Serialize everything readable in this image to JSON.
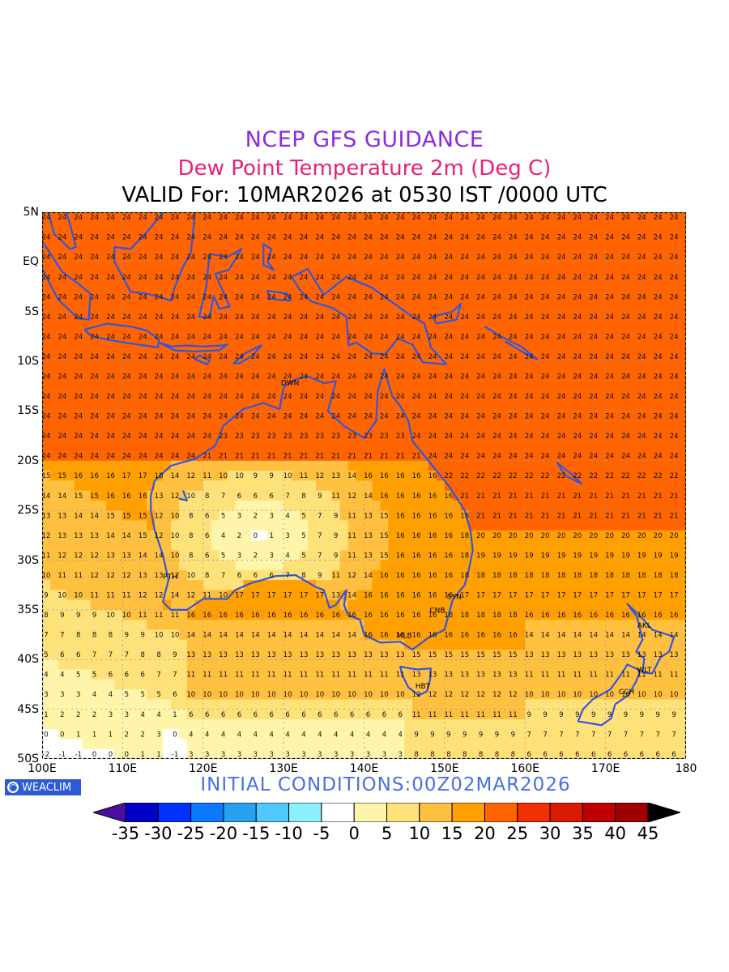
{
  "header": {
    "line1": "NCEP GFS GUIDANCE",
    "line2": "Dew Point Temperature 2m (Deg C)",
    "line3": "VALID For: 10MAR2026 at 0530 IST /0000 UTC",
    "line1_color": "#8a2be2",
    "line2_color": "#e8207a"
  },
  "map": {
    "lat_labels": [
      "5N",
      "EQ",
      "5S",
      "10S",
      "15S",
      "20S",
      "25S",
      "30S",
      "35S",
      "40S",
      "45S",
      "50S"
    ],
    "lon_labels": [
      "100E",
      "110E",
      "120E",
      "130E",
      "140E",
      "150E",
      "160E",
      "170E",
      "180"
    ],
    "coastline_color": "#3355dd",
    "city_labels": [
      {
        "name": "DWN",
        "lon": 130.8,
        "lat": -12.4
      },
      {
        "name": "PTH",
        "lon": 115.9,
        "lat": -31.9
      },
      {
        "name": "SYN",
        "lon": 151.2,
        "lat": -33.9
      },
      {
        "name": "CNB",
        "lon": 149.1,
        "lat": -35.3
      },
      {
        "name": "MLB",
        "lon": 145.0,
        "lat": -37.8
      },
      {
        "name": "HBT",
        "lon": 147.3,
        "lat": -42.9
      },
      {
        "name": "AKL",
        "lon": 174.8,
        "lat": -36.8
      },
      {
        "name": "WLT",
        "lon": 174.8,
        "lat": -41.3
      },
      {
        "name": "CCH",
        "lon": 172.6,
        "lat": -43.5
      }
    ]
  },
  "footer": {
    "logo_text": "WEACLIM",
    "initial_conditions": "INITIAL CONDITIONS:00Z02MAR2026",
    "initial_color": "#4a6fe3"
  },
  "colorbar": {
    "labels": [
      "-35",
      "-30",
      "-25",
      "-20",
      "-15",
      "-10",
      "-5",
      "0",
      "5",
      "10",
      "15",
      "20",
      "25",
      "30",
      "35",
      "40",
      "45"
    ],
    "colors": [
      "#4b0f9e",
      "#0000c8",
      "#0032ff",
      "#0a78ff",
      "#28a0f0",
      "#50c8ff",
      "#8cf0ff",
      "#ffffff",
      "#fff5aa",
      "#ffe17a",
      "#ffc040",
      "#ffa000",
      "#ff6400",
      "#f03000",
      "#d81a00",
      "#c00000",
      "#a00000",
      "#000000"
    ]
  }
}
